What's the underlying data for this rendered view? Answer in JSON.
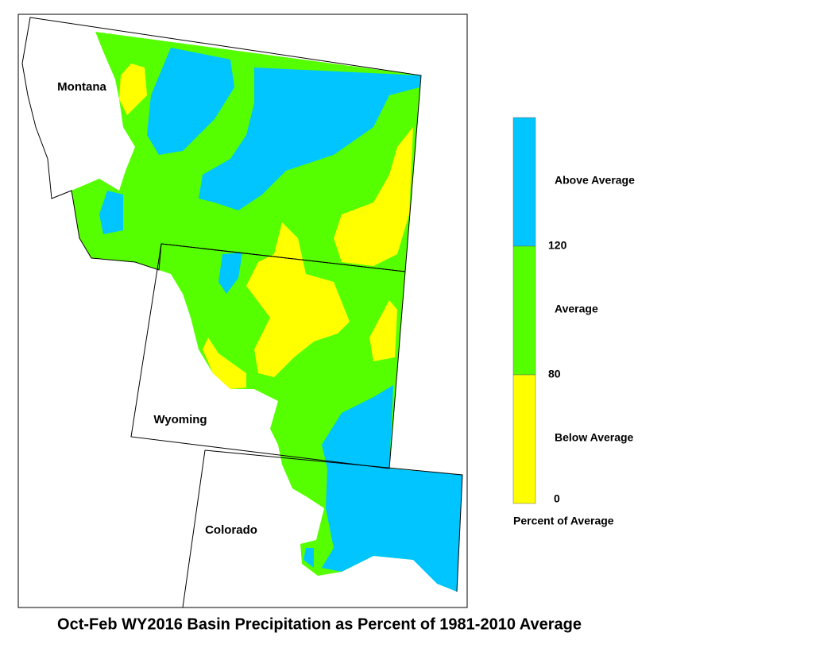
{
  "map": {
    "title": "Oct-Feb WY2016 Basin Precipitation as Percent of 1981-2010 Average",
    "regions": [
      {
        "label": "Montana"
      },
      {
        "label": "Wyoming"
      },
      {
        "label": "Colorado"
      }
    ]
  },
  "legend": {
    "title": "Percent of Average",
    "classes": [
      {
        "label": "Above Average",
        "color": "#00c5ff"
      },
      {
        "label": "Average",
        "color": "#55ff00"
      },
      {
        "label": "Below Average",
        "color": "#ffff00"
      }
    ],
    "breaks": [
      120,
      80,
      0
    ]
  }
}
